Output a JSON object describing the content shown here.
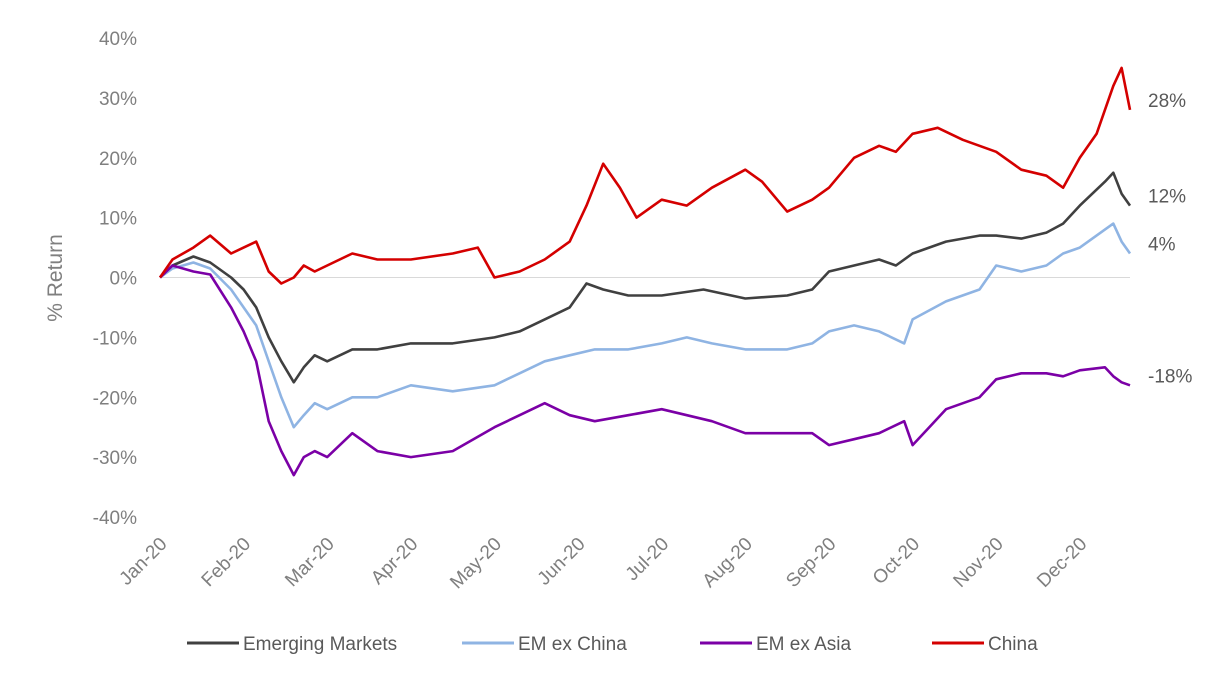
{
  "chart_data": {
    "type": "line",
    "ylabel": "% Return",
    "ylim": [
      -40,
      40
    ],
    "yticks": [
      "40%",
      "30%",
      "20%",
      "10%",
      "0%",
      "-10%",
      "-20%",
      "-30%",
      "-40%"
    ],
    "xticks": [
      "Jan-20",
      "Feb-20",
      "Mar-20",
      "Apr-20",
      "May-20",
      "Jun-20",
      "Jul-20",
      "Aug-20",
      "Sep-20",
      "Oct-20",
      "Nov-20",
      "Dec-20"
    ],
    "legend_position": "bottom",
    "series": [
      {
        "name": "Emerging Markets",
        "color": "#404040",
        "end_label": "12%",
        "points": [
          [
            0,
            0
          ],
          [
            0.15,
            2
          ],
          [
            0.4,
            3.5
          ],
          [
            0.6,
            2.5
          ],
          [
            0.85,
            0
          ],
          [
            1,
            -2
          ],
          [
            1.15,
            -5
          ],
          [
            1.3,
            -10
          ],
          [
            1.45,
            -14
          ],
          [
            1.6,
            -17.5
          ],
          [
            1.72,
            -15
          ],
          [
            1.85,
            -13
          ],
          [
            2,
            -14
          ],
          [
            2.3,
            -12
          ],
          [
            2.6,
            -12
          ],
          [
            3,
            -11
          ],
          [
            3.5,
            -11
          ],
          [
            4,
            -10
          ],
          [
            4.3,
            -9
          ],
          [
            4.6,
            -7
          ],
          [
            4.9,
            -5
          ],
          [
            5.1,
            -1
          ],
          [
            5.3,
            -2
          ],
          [
            5.6,
            -3
          ],
          [
            6,
            -3
          ],
          [
            6.5,
            -2
          ],
          [
            7,
            -3.5
          ],
          [
            7.5,
            -3
          ],
          [
            7.8,
            -2
          ],
          [
            8,
            1
          ],
          [
            8.3,
            2
          ],
          [
            8.6,
            3
          ],
          [
            8.8,
            2
          ],
          [
            9,
            4
          ],
          [
            9.4,
            6
          ],
          [
            9.8,
            7
          ],
          [
            10,
            7
          ],
          [
            10.3,
            6.5
          ],
          [
            10.6,
            7.5
          ],
          [
            10.8,
            9
          ],
          [
            11,
            12
          ],
          [
            11.3,
            16
          ],
          [
            11.4,
            17.5
          ],
          [
            11.5,
            14
          ],
          [
            11.6,
            12
          ]
        ]
      },
      {
        "name": "EM ex China",
        "color": "#8fb4e3",
        "end_label": "4%",
        "points": [
          [
            0,
            0
          ],
          [
            0.15,
            1.5
          ],
          [
            0.4,
            2.5
          ],
          [
            0.6,
            1.5
          ],
          [
            0.85,
            -2
          ],
          [
            1,
            -5
          ],
          [
            1.15,
            -8
          ],
          [
            1.3,
            -14
          ],
          [
            1.45,
            -20
          ],
          [
            1.6,
            -25
          ],
          [
            1.72,
            -23
          ],
          [
            1.85,
            -21
          ],
          [
            2,
            -22
          ],
          [
            2.3,
            -20
          ],
          [
            2.6,
            -20
          ],
          [
            3,
            -18
          ],
          [
            3.5,
            -19
          ],
          [
            4,
            -18
          ],
          [
            4.3,
            -16
          ],
          [
            4.6,
            -14
          ],
          [
            4.9,
            -13
          ],
          [
            5.2,
            -12
          ],
          [
            5.6,
            -12
          ],
          [
            6,
            -11
          ],
          [
            6.3,
            -10
          ],
          [
            6.6,
            -11
          ],
          [
            7,
            -12
          ],
          [
            7.5,
            -12
          ],
          [
            7.8,
            -11
          ],
          [
            8,
            -9
          ],
          [
            8.3,
            -8
          ],
          [
            8.6,
            -9
          ],
          [
            8.9,
            -11
          ],
          [
            9,
            -7
          ],
          [
            9.4,
            -4
          ],
          [
            9.8,
            -2
          ],
          [
            10,
            2
          ],
          [
            10.3,
            1
          ],
          [
            10.6,
            2
          ],
          [
            10.8,
            4
          ],
          [
            11,
            5
          ],
          [
            11.3,
            8
          ],
          [
            11.4,
            9
          ],
          [
            11.5,
            6
          ],
          [
            11.6,
            4
          ]
        ]
      },
      {
        "name": "EM ex Asia",
        "color": "#7b00a6",
        "end_label": "-18%",
        "points": [
          [
            0,
            0
          ],
          [
            0.15,
            2
          ],
          [
            0.4,
            1
          ],
          [
            0.6,
            0.5
          ],
          [
            0.85,
            -5
          ],
          [
            1,
            -9
          ],
          [
            1.15,
            -14
          ],
          [
            1.3,
            -24
          ],
          [
            1.45,
            -29
          ],
          [
            1.6,
            -33
          ],
          [
            1.72,
            -30
          ],
          [
            1.85,
            -29
          ],
          [
            2,
            -30
          ],
          [
            2.3,
            -26
          ],
          [
            2.6,
            -29
          ],
          [
            3,
            -30
          ],
          [
            3.5,
            -29
          ],
          [
            4,
            -25
          ],
          [
            4.3,
            -23
          ],
          [
            4.6,
            -21
          ],
          [
            4.9,
            -23
          ],
          [
            5.2,
            -24
          ],
          [
            5.6,
            -23
          ],
          [
            6,
            -22
          ],
          [
            6.3,
            -23
          ],
          [
            6.6,
            -24
          ],
          [
            7,
            -26
          ],
          [
            7.5,
            -26
          ],
          [
            7.8,
            -26
          ],
          [
            8,
            -28
          ],
          [
            8.3,
            -27
          ],
          [
            8.6,
            -26
          ],
          [
            8.9,
            -24
          ],
          [
            9,
            -28
          ],
          [
            9.2,
            -25
          ],
          [
            9.4,
            -22
          ],
          [
            9.8,
            -20
          ],
          [
            10,
            -17
          ],
          [
            10.3,
            -16
          ],
          [
            10.6,
            -16
          ],
          [
            10.8,
            -16.5
          ],
          [
            11,
            -15.5
          ],
          [
            11.3,
            -15
          ],
          [
            11.4,
            -16.5
          ],
          [
            11.5,
            -17.5
          ],
          [
            11.6,
            -18
          ]
        ]
      },
      {
        "name": "China",
        "color": "#d40000",
        "end_label": "28%",
        "points": [
          [
            0,
            0
          ],
          [
            0.15,
            3
          ],
          [
            0.4,
            5
          ],
          [
            0.6,
            7
          ],
          [
            0.85,
            4
          ],
          [
            1,
            5
          ],
          [
            1.15,
            6
          ],
          [
            1.3,
            1
          ],
          [
            1.45,
            -1
          ],
          [
            1.6,
            0
          ],
          [
            1.72,
            2
          ],
          [
            1.85,
            1
          ],
          [
            2,
            2
          ],
          [
            2.3,
            4
          ],
          [
            2.6,
            3
          ],
          [
            3,
            3
          ],
          [
            3.5,
            4
          ],
          [
            3.8,
            5
          ],
          [
            4,
            0
          ],
          [
            4.3,
            1
          ],
          [
            4.6,
            3
          ],
          [
            4.9,
            6
          ],
          [
            5.1,
            12
          ],
          [
            5.3,
            19
          ],
          [
            5.5,
            15
          ],
          [
            5.7,
            10
          ],
          [
            6,
            13
          ],
          [
            6.3,
            12
          ],
          [
            6.6,
            15
          ],
          [
            7,
            18
          ],
          [
            7.2,
            16
          ],
          [
            7.5,
            11
          ],
          [
            7.8,
            13
          ],
          [
            8,
            15
          ],
          [
            8.3,
            20
          ],
          [
            8.6,
            22
          ],
          [
            8.8,
            21
          ],
          [
            9,
            24
          ],
          [
            9.3,
            25
          ],
          [
            9.6,
            23
          ],
          [
            10,
            21
          ],
          [
            10.3,
            18
          ],
          [
            10.6,
            17
          ],
          [
            10.8,
            15
          ],
          [
            11,
            20
          ],
          [
            11.2,
            24
          ],
          [
            11.4,
            32
          ],
          [
            11.5,
            35
          ],
          [
            11.6,
            28
          ]
        ]
      }
    ]
  }
}
